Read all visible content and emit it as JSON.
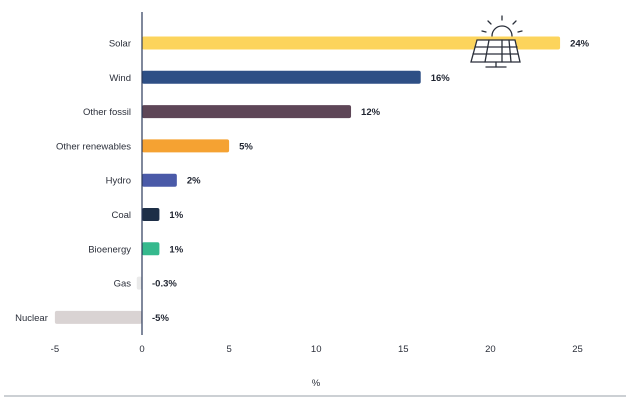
{
  "chart_data": {
    "type": "bar",
    "orientation": "horizontal",
    "categories": [
      "Solar",
      "Wind",
      "Other fossil",
      "Other renewables",
      "Hydro",
      "Coal",
      "Bioenergy",
      "Gas",
      "Nuclear"
    ],
    "values": [
      24,
      16,
      12,
      5,
      2,
      1,
      1,
      -0.3,
      -5
    ],
    "value_labels": [
      "24%",
      "16%",
      "12%",
      "5%",
      "2%",
      "1%",
      "1%",
      "-0.3%",
      "-5%"
    ],
    "colors": [
      "#fcd45c",
      "#2e4f85",
      "#5e4657",
      "#f5a232",
      "#4a5aa8",
      "#1d2e47",
      "#35b98d",
      "#eaeaea",
      "#d9d3d3"
    ],
    "xlabel": "%",
    "xlim": [
      -5,
      25
    ],
    "xticks": [
      -5,
      0,
      5,
      10,
      15,
      20,
      25
    ],
    "grid": false,
    "legend": "none",
    "decoration": "solar-panel-icon"
  }
}
